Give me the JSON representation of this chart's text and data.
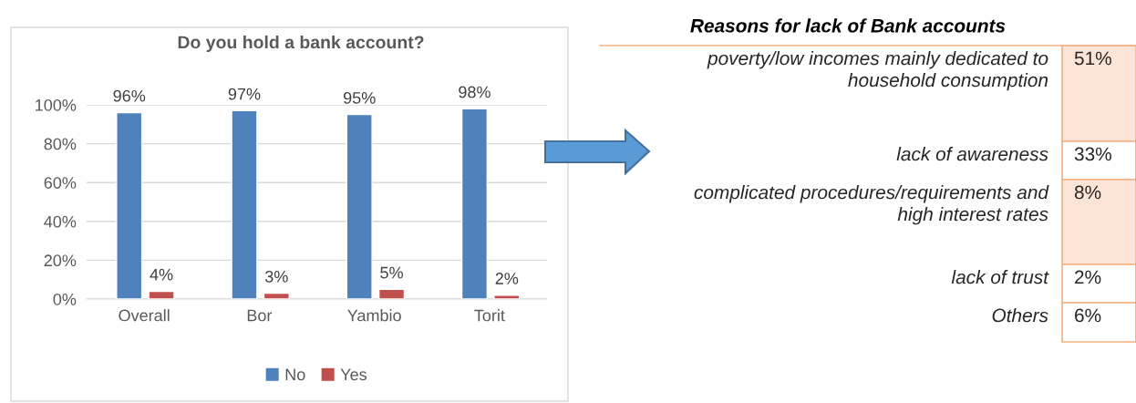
{
  "chart_data": [
    {
      "type": "bar",
      "title": "Do you hold a bank account?",
      "categories": [
        "Overall",
        "Bor",
        "Yambio",
        "Torit"
      ],
      "series": [
        {
          "name": "No",
          "color": "#4f81bd",
          "values": [
            96,
            97,
            95,
            98
          ]
        },
        {
          "name": "Yes",
          "color": "#c0504d",
          "values": [
            4,
            3,
            5,
            2
          ]
        }
      ],
      "ylim": [
        0,
        100
      ],
      "yticks": [
        {
          "value": 0,
          "label": "0%"
        },
        {
          "value": 20,
          "label": "20%"
        },
        {
          "value": 40,
          "label": "40%"
        },
        {
          "value": 60,
          "label": "60%"
        },
        {
          "value": 80,
          "label": "80%"
        },
        {
          "value": 100,
          "label": "100%"
        }
      ],
      "value_labels": [
        [
          "96%",
          "97%",
          "95%",
          "98%"
        ],
        [
          "4%",
          "3%",
          "5%",
          "2%"
        ]
      ],
      "grid": "y",
      "legend": "bottom"
    },
    {
      "type": "other",
      "title": "Reasons for lack of Bank accounts",
      "categories": [
        "poverty/low incomes mainly dedicated to\nhousehold consumption",
        "lack of awareness",
        "complicated procedures/requirements and\nhigh interest rates",
        "lack of trust",
        "Others"
      ],
      "value_labels": [
        "51%",
        "33%",
        "8%",
        "2%",
        "6%"
      ],
      "colors": [
        "#fce4d6",
        "#ffffff",
        "#fce4d6",
        "#ffffff",
        "#ffffff"
      ]
    }
  ]
}
